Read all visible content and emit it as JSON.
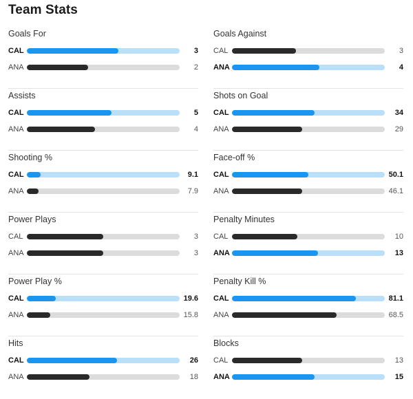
{
  "title": "Team Stats",
  "colors": {
    "leader": "#1a96f0",
    "leader_track": "#b9dff9",
    "trailer": "#2a2a2a",
    "trailer_track": "#dcdcdc"
  },
  "stats": [
    {
      "name": "Goals For",
      "rows": [
        {
          "team": "CAL",
          "value": "3",
          "fraction": 0.6,
          "leader": true
        },
        {
          "team": "ANA",
          "value": "2",
          "fraction": 0.4,
          "leader": false
        }
      ]
    },
    {
      "name": "Goals Against",
      "rows": [
        {
          "team": "CAL",
          "value": "3",
          "fraction": 0.42,
          "leader": false
        },
        {
          "team": "ANA",
          "value": "4",
          "fraction": 0.57,
          "leader": true
        }
      ]
    },
    {
      "name": "Assists",
      "rows": [
        {
          "team": "CAL",
          "value": "5",
          "fraction": 0.555,
          "leader": true
        },
        {
          "team": "ANA",
          "value": "4",
          "fraction": 0.445,
          "leader": false
        }
      ]
    },
    {
      "name": "Shots on Goal",
      "rows": [
        {
          "team": "CAL",
          "value": "34",
          "fraction": 0.54,
          "leader": true
        },
        {
          "team": "ANA",
          "value": "29",
          "fraction": 0.46,
          "leader": false
        }
      ]
    },
    {
      "name": "Shooting %",
      "rows": [
        {
          "team": "CAL",
          "value": "9.1",
          "fraction": 0.09,
          "leader": true
        },
        {
          "team": "ANA",
          "value": "7.9",
          "fraction": 0.075,
          "leader": false
        }
      ]
    },
    {
      "name": "Face-off %",
      "rows": [
        {
          "team": "CAL",
          "value": "50.1",
          "fraction": 0.5,
          "leader": true
        },
        {
          "team": "ANA",
          "value": "46.1",
          "fraction": 0.46,
          "leader": false
        }
      ]
    },
    {
      "name": "Power Plays",
      "rows": [
        {
          "team": "CAL",
          "value": "3",
          "fraction": 0.5,
          "leader": false
        },
        {
          "team": "ANA",
          "value": "3",
          "fraction": 0.5,
          "leader": false
        }
      ]
    },
    {
      "name": "Penalty Minutes",
      "rows": [
        {
          "team": "CAL",
          "value": "10",
          "fraction": 0.43,
          "leader": false
        },
        {
          "team": "ANA",
          "value": "13",
          "fraction": 0.565,
          "leader": true
        }
      ]
    },
    {
      "name": "Power Play %",
      "rows": [
        {
          "team": "CAL",
          "value": "19.6",
          "fraction": 0.19,
          "leader": true
        },
        {
          "team": "ANA",
          "value": "15.8",
          "fraction": 0.155,
          "leader": false
        }
      ]
    },
    {
      "name": "Penalty Kill %",
      "rows": [
        {
          "team": "CAL",
          "value": "81.1",
          "fraction": 0.81,
          "leader": true
        },
        {
          "team": "ANA",
          "value": "68.5",
          "fraction": 0.685,
          "leader": false
        }
      ]
    },
    {
      "name": "Hits",
      "rows": [
        {
          "team": "CAL",
          "value": "26",
          "fraction": 0.59,
          "leader": true
        },
        {
          "team": "ANA",
          "value": "18",
          "fraction": 0.41,
          "leader": false
        }
      ]
    },
    {
      "name": "Blocks",
      "rows": [
        {
          "team": "CAL",
          "value": "13",
          "fraction": 0.46,
          "leader": false
        },
        {
          "team": "ANA",
          "value": "15",
          "fraction": 0.54,
          "leader": true
        }
      ]
    }
  ]
}
